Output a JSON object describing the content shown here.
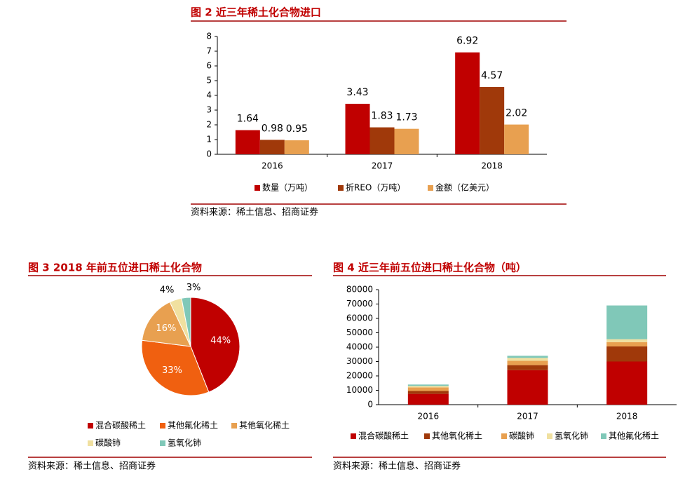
{
  "chart_data": [
    {
      "type": "bar",
      "title": "图 2 近三年稀土化合物进口",
      "source": "资料来源：稀土信息、招商证券",
      "categories": [
        "2016",
        "2017",
        "2018"
      ],
      "series": [
        {
          "name": "数量（万吨）",
          "color": "#c00000",
          "values": [
            1.64,
            3.43,
            6.92
          ]
        },
        {
          "name": "折REO（万吨）",
          "color": "#a0390a",
          "values": [
            0.98,
            1.83,
            4.57
          ]
        },
        {
          "name": "金额（亿美元）",
          "color": "#e8a050",
          "values": [
            0.95,
            1.73,
            2.02
          ]
        }
      ],
      "ylim": [
        0,
        8
      ],
      "yticks": [
        0,
        1,
        2,
        3,
        4,
        5,
        6,
        7,
        8
      ],
      "data_labels": true
    },
    {
      "type": "pie",
      "title": "图 3 2018 年前五位进口稀土化合物",
      "source": "资料来源：稀土信息、招商证券",
      "categories": [
        "混合碳酸稀土",
        "其他氟化稀土",
        "其他氧化稀土",
        "碳酸铈",
        "氢氧化铈"
      ],
      "values": [
        44,
        33,
        16,
        4,
        3
      ],
      "value_labels": [
        "44%",
        "33%",
        "16%",
        "4%",
        "3%"
      ],
      "colors": [
        "#c00000",
        "#f06010",
        "#e8a050",
        "#f0e0a0",
        "#80c8b8"
      ]
    },
    {
      "type": "stacked_bar",
      "title": "图 4  近三年前五位进口稀土化合物（吨）",
      "source": "资料来源：稀土信息、招商证券",
      "categories": [
        "2016",
        "2017",
        "2018"
      ],
      "series": [
        {
          "name": "混合碳酸稀土",
          "color": "#c00000",
          "values": [
            7500,
            24000,
            30000
          ]
        },
        {
          "name": "其他氧化稀土",
          "color": "#a0390a",
          "values": [
            2000,
            3500,
            10500
          ]
        },
        {
          "name": "碳酸铈",
          "color": "#e8a050",
          "values": [
            2500,
            3000,
            3000
          ]
        },
        {
          "name": "氢氧化铈",
          "color": "#f0e0a0",
          "values": [
            1000,
            2000,
            2000
          ]
        },
        {
          "name": "其他氟化稀土",
          "color": "#80c8b8",
          "values": [
            1000,
            1500,
            23500
          ]
        }
      ],
      "ylim": [
        0,
        80000
      ],
      "yticks": [
        0,
        10000,
        20000,
        30000,
        40000,
        50000,
        60000,
        70000,
        80000
      ]
    }
  ]
}
